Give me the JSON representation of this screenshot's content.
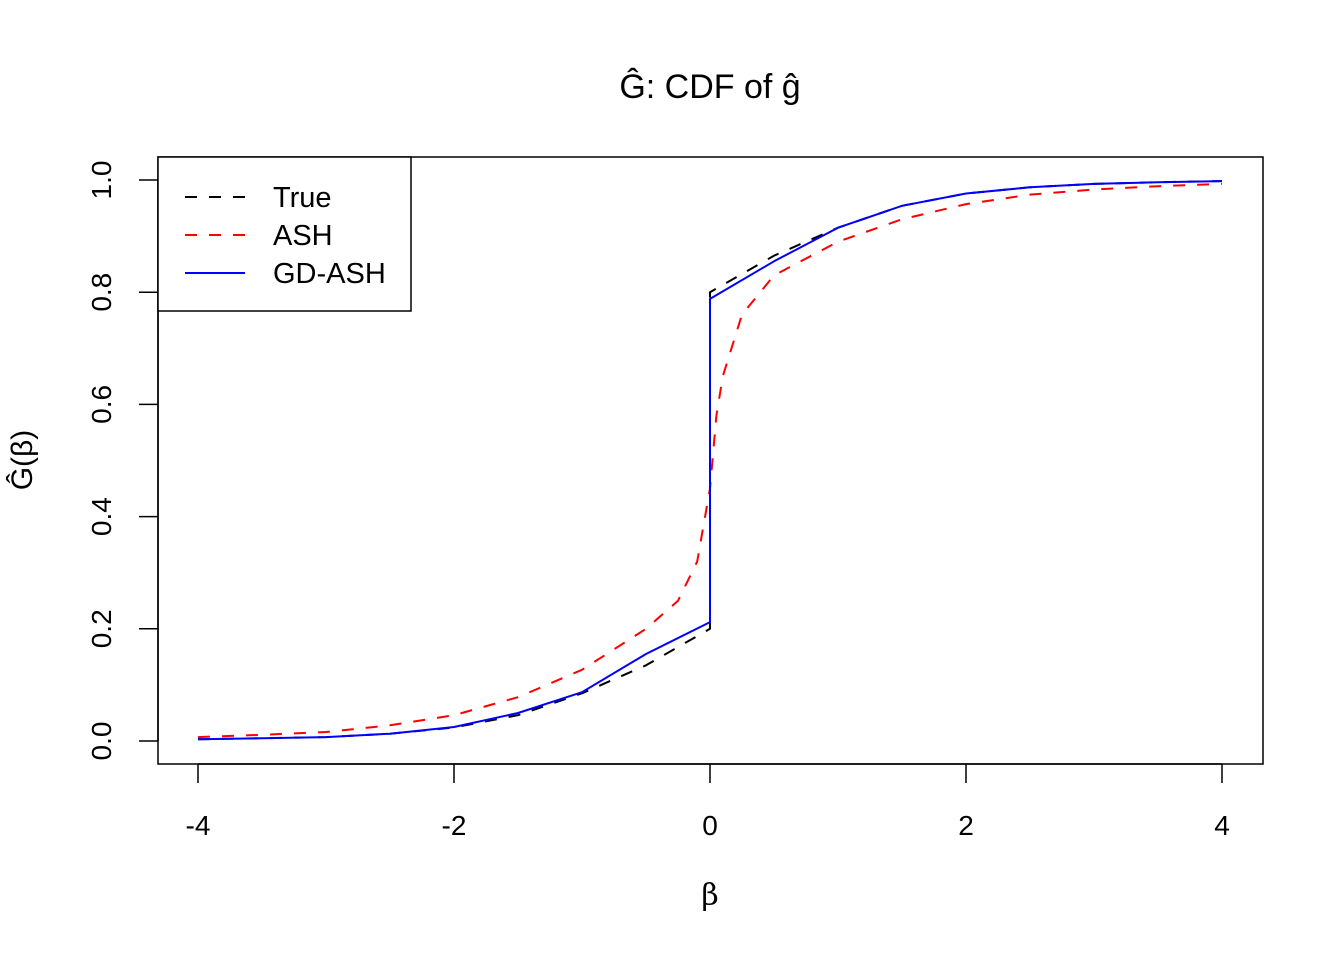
{
  "chart_data": {
    "type": "line",
    "title": "Ĝ: CDF of ĝ",
    "xlabel": "β",
    "ylabel": "Ĝ(β)",
    "xlim": [
      -4,
      4
    ],
    "ylim": [
      0,
      1
    ],
    "xticks": [
      -4,
      -2,
      0,
      2,
      4
    ],
    "yticks": [
      0.0,
      0.2,
      0.4,
      0.6,
      0.8,
      1.0
    ],
    "xtick_labels": [
      "-4",
      "-2",
      "0",
      "2",
      "4"
    ],
    "ytick_labels": [
      "0.0",
      "0.2",
      "0.4",
      "0.6",
      "0.8",
      "1.0"
    ],
    "grid": false,
    "legend_position": "top-left",
    "series": [
      {
        "name": "True",
        "color": "#000000",
        "style": "dashed",
        "points": [
          [
            -4,
            0.003
          ],
          [
            -3.5,
            0.005
          ],
          [
            -3,
            0.007
          ],
          [
            -2.5,
            0.013
          ],
          [
            -2,
            0.024
          ],
          [
            -1.5,
            0.046
          ],
          [
            -1,
            0.085
          ],
          [
            -0.5,
            0.135
          ],
          [
            0,
            0.2
          ],
          [
            0,
            0.8
          ],
          [
            0.5,
            0.865
          ],
          [
            1,
            0.915
          ],
          [
            1.5,
            0.954
          ],
          [
            2,
            0.976
          ],
          [
            2.5,
            0.987
          ],
          [
            3,
            0.993
          ],
          [
            3.5,
            0.996
          ],
          [
            4,
            0.998
          ]
        ]
      },
      {
        "name": "ASH",
        "color": "#ff0000",
        "style": "dashed",
        "points": [
          [
            -4,
            0.007
          ],
          [
            -3.5,
            0.011
          ],
          [
            -3,
            0.016
          ],
          [
            -2.5,
            0.028
          ],
          [
            -2,
            0.046
          ],
          [
            -1.5,
            0.078
          ],
          [
            -1,
            0.127
          ],
          [
            -0.5,
            0.2
          ],
          [
            -0.25,
            0.25
          ],
          [
            -0.1,
            0.32
          ],
          [
            0,
            0.45
          ],
          [
            0.05,
            0.58
          ],
          [
            0.1,
            0.65
          ],
          [
            0.25,
            0.76
          ],
          [
            0.5,
            0.83
          ],
          [
            1,
            0.89
          ],
          [
            1.5,
            0.93
          ],
          [
            2,
            0.957
          ],
          [
            2.5,
            0.974
          ],
          [
            3,
            0.983
          ],
          [
            3.5,
            0.989
          ],
          [
            4,
            0.993
          ]
        ]
      },
      {
        "name": "GD-ASH",
        "color": "#0000ff",
        "style": "solid",
        "points": [
          [
            -4,
            0.003
          ],
          [
            -3.5,
            0.005
          ],
          [
            -3,
            0.007
          ],
          [
            -2.5,
            0.013
          ],
          [
            -2,
            0.025
          ],
          [
            -1.5,
            0.05
          ],
          [
            -1,
            0.087
          ],
          [
            -0.5,
            0.155
          ],
          [
            0,
            0.212
          ],
          [
            0,
            0.788
          ],
          [
            0.5,
            0.855
          ],
          [
            1,
            0.915
          ],
          [
            1.5,
            0.954
          ],
          [
            2,
            0.976
          ],
          [
            2.5,
            0.987
          ],
          [
            3,
            0.993
          ],
          [
            3.5,
            0.996
          ],
          [
            4,
            0.998
          ]
        ]
      }
    ]
  }
}
